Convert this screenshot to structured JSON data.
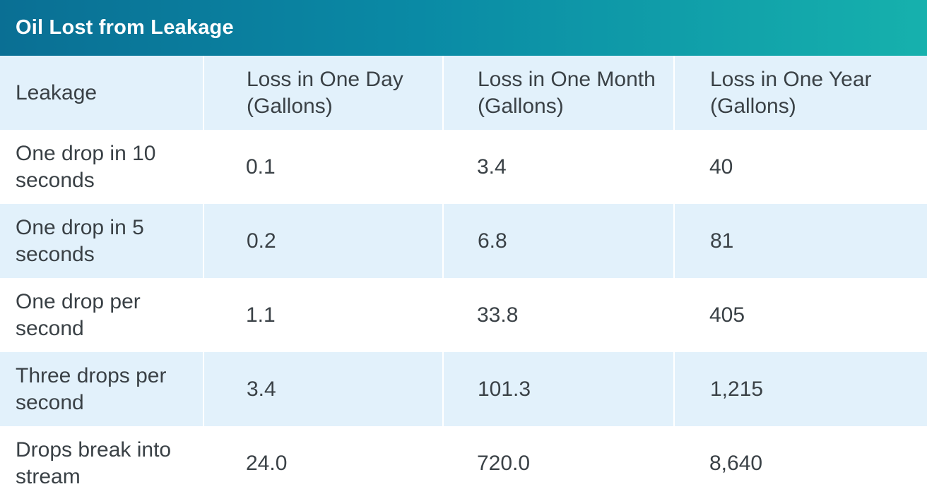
{
  "title": "Oil Lost from Leakage",
  "columns": [
    "Leakage",
    "Loss in One Day (Gallons)",
    "Loss in One Month (Gallons)",
    "Loss in One Year (Gallons)"
  ],
  "rows": [
    {
      "leakage": "One drop in 10 seconds",
      "day": "0.1",
      "month": "3.4",
      "year": "40"
    },
    {
      "leakage": "One drop in 5 seconds",
      "day": "0.2",
      "month": "6.8",
      "year": "81"
    },
    {
      "leakage": "One drop per second",
      "day": "1.1",
      "month": "33.8",
      "year": "405"
    },
    {
      "leakage": "Three drops per second",
      "day": "3.4",
      "month": "101.3",
      "year": "1,215"
    },
    {
      "leakage": "Drops break into stream",
      "day": "24.0",
      "month": "720.0",
      "year": "8,640"
    }
  ],
  "colors": {
    "header_gradient_start": "#0a6f94",
    "header_gradient_end": "#16b1ad",
    "row_shade": "#e2f1fb",
    "text": "#3a4146"
  }
}
